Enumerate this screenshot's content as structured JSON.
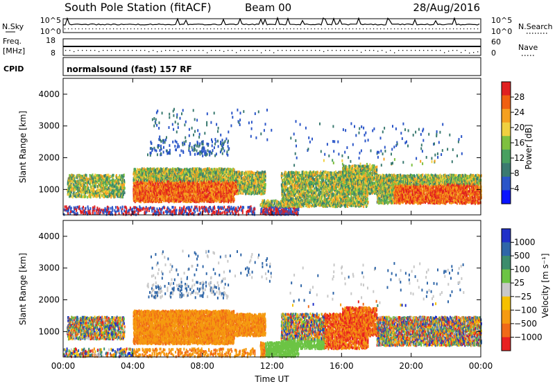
{
  "header": {
    "station": "South Pole Station (fitACF)",
    "beam": "Beam 00",
    "date": "28/Aug/2016"
  },
  "panels": {
    "nsky": {
      "left_label": "N.Sky",
      "left_ticks": [
        "10^5",
        "10^0"
      ],
      "right_label": "N.Search",
      "right_ticks": [
        "10^5",
        "10^0"
      ]
    },
    "freq": {
      "left_label_1": "Freq.",
      "left_label_2": "[MHz]",
      "left_ticks": [
        "18",
        "8"
      ],
      "right_label": "Nave",
      "right_ticks": [
        "60",
        "0"
      ]
    },
    "cpid": {
      "label": "CPID",
      "text": "normalsound (fast) 157 RF"
    }
  },
  "chart_data": [
    {
      "type": "heatmap",
      "name": "power",
      "ylabel": "Slant Range [km]",
      "xlabel": "",
      "y_ticks": [
        "1000",
        "2000",
        "3000",
        "4000"
      ],
      "ylim": [
        200,
        4500
      ],
      "x_ticks": [
        "00:00",
        "04:00",
        "08:00",
        "12:00",
        "16:00",
        "20:00",
        "00:00"
      ],
      "colorbar": {
        "label": "Power [dB]",
        "ticks": [
          "4",
          "8",
          "12",
          "16",
          "20",
          "24",
          "28"
        ],
        "range": [
          0,
          32
        ],
        "colors": [
          "#0a14ff",
          "#2a55c8",
          "#3a7a70",
          "#48a060",
          "#7ec040",
          "#f0d040",
          "#f5a020",
          "#f06010",
          "#e02020"
        ]
      }
    },
    {
      "type": "heatmap",
      "name": "velocity",
      "ylabel": "Slant Range [km]",
      "xlabel": "Time UT",
      "y_ticks": [
        "1000",
        "2000",
        "3000",
        "4000"
      ],
      "ylim": [
        200,
        4500
      ],
      "x_ticks": [
        "00:00",
        "04:00",
        "08:00",
        "12:00",
        "16:00",
        "20:00",
        "00:00"
      ],
      "colorbar": {
        "label": "Velocity [m s⁻¹]",
        "ticks": [
          "1000",
          "500",
          "100",
          "25",
          "−25",
          "−100",
          "−500",
          "−1000"
        ],
        "range": [
          -1200,
          1200
        ],
        "colors": [
          "#2030c8",
          "#2f66a8",
          "#3c8c6c",
          "#6cc444",
          "#c8c8c8",
          "#f5c000",
          "#f59a10",
          "#f06a18",
          "#e82020"
        ]
      }
    }
  ]
}
